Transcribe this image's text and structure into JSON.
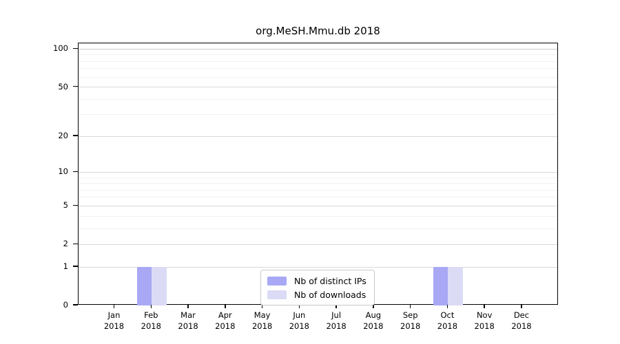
{
  "chart_data": {
    "type": "bar",
    "title": "org.MeSH.Mmu.db 2018",
    "categories": [
      "Jan",
      "Feb",
      "Mar",
      "Apr",
      "May",
      "Jun",
      "Jul",
      "Aug",
      "Sep",
      "Oct",
      "Nov",
      "Dec"
    ],
    "category_sublabel": "2018",
    "series": [
      {
        "name": "Nb of distinct IPs",
        "color": "#a8a8f5",
        "values": [
          0,
          1,
          0,
          0,
          0,
          0,
          0,
          0,
          0,
          1,
          0,
          0
        ]
      },
      {
        "name": "Nb of downloads",
        "color": "#dbdbf6",
        "values": [
          0,
          1,
          0,
          0,
          0,
          0,
          0,
          0,
          0,
          1,
          0,
          0
        ]
      }
    ],
    "y_axis": {
      "scale": "log1p",
      "ticks": [
        0,
        1,
        2,
        5,
        10,
        20,
        50,
        100
      ],
      "ylim": [
        0,
        110
      ],
      "minor_grid_values": [
        3,
        4,
        6,
        7,
        8,
        9,
        30,
        40,
        60,
        70,
        80,
        90
      ]
    },
    "x_axis": {
      "year": "2018"
    },
    "legend": {
      "position": "bottom-center"
    },
    "grid": true,
    "colors": {
      "grid_minor": "#f1f1f1",
      "grid_major": "#d9d9d9",
      "grid_top": "#c9c9c9",
      "frame": "#000000"
    }
  }
}
